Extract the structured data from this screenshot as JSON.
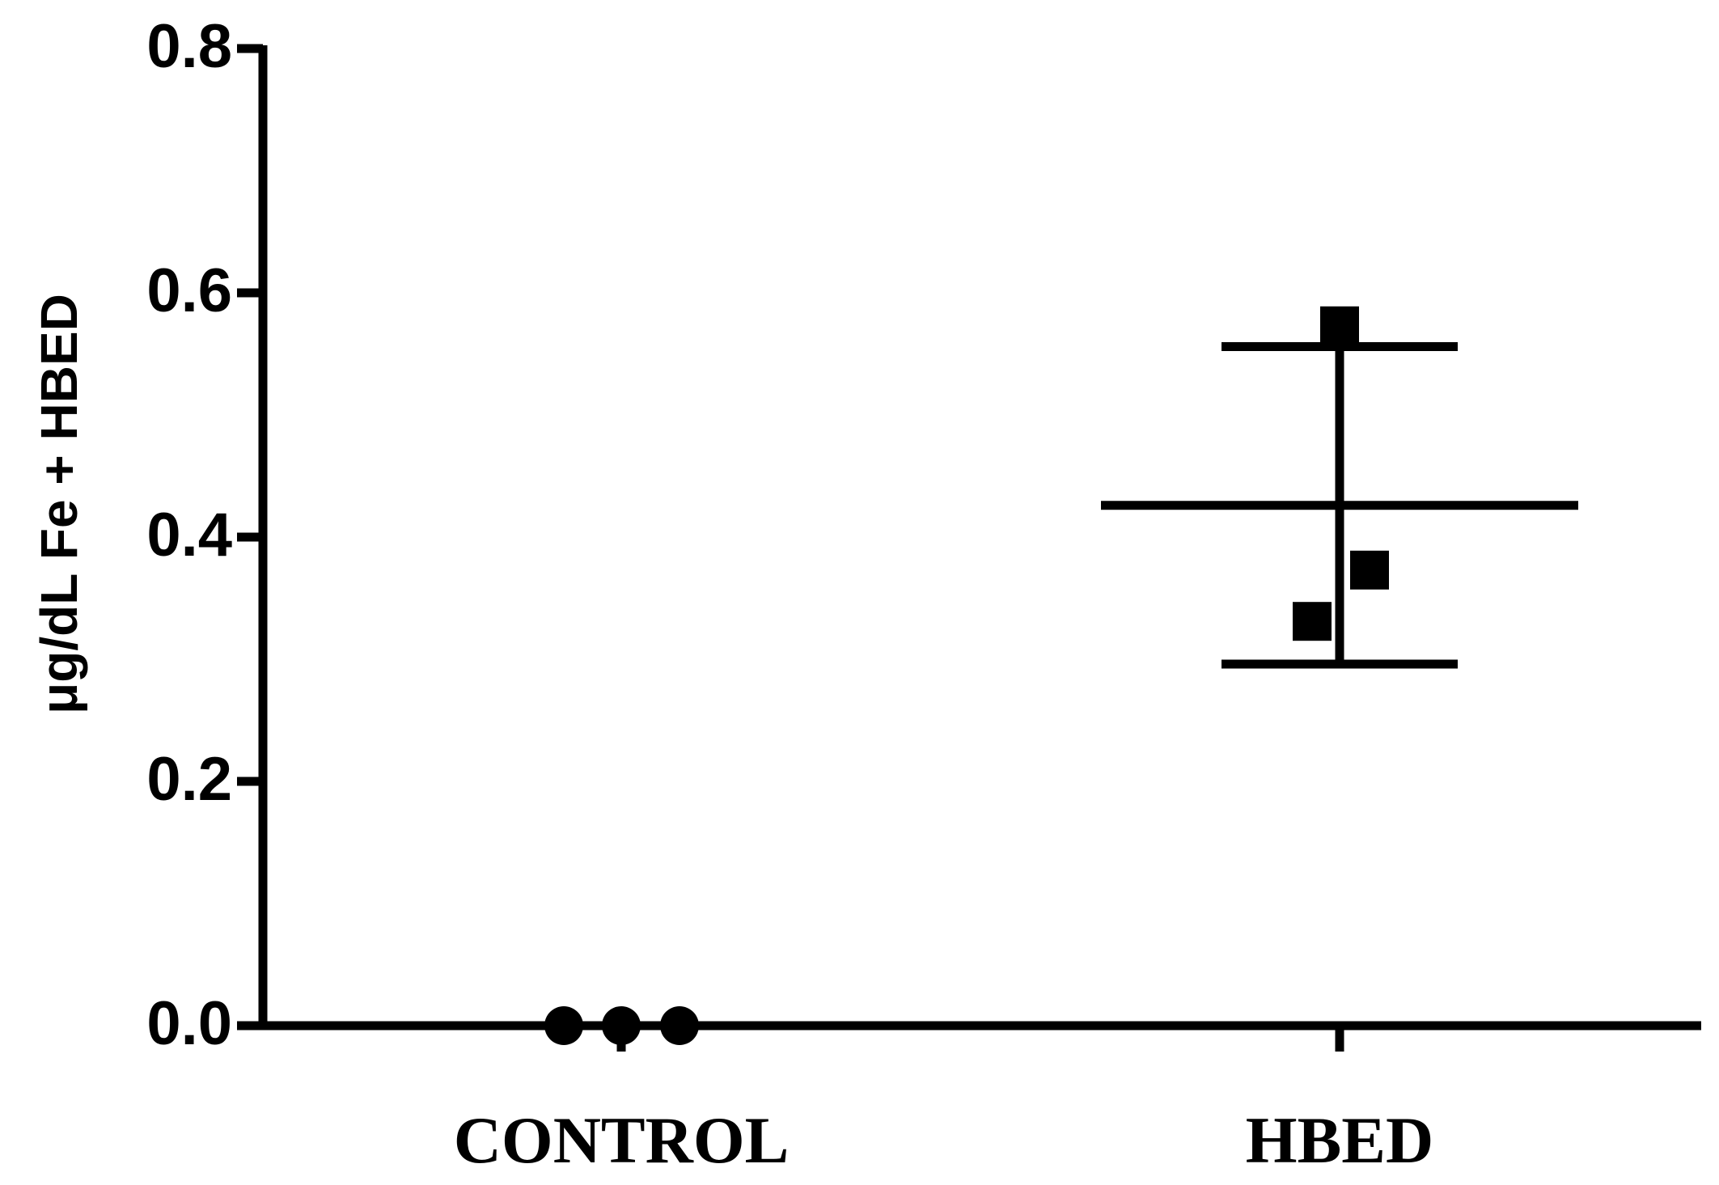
{
  "chart_data": {
    "type": "dot",
    "y_label": "μg/dL Fe + HBED",
    "categories": [
      "CONTROL",
      "HBED"
    ],
    "markers": [
      "circle",
      "square"
    ],
    "color": "#000000",
    "values": [
      [
        0,
        0,
        0
      ],
      [
        0.573,
        0.373,
        0.331
      ]
    ],
    "means": [
      0,
      0.426
    ],
    "errors": [
      0,
      0.13
    ],
    "ylim": [
      0,
      0.8
    ],
    "yticks": [
      {
        "value": 0,
        "label": "0.0"
      },
      {
        "value": 0.2,
        "label": "0.2"
      },
      {
        "value": 0.4,
        "label": "0.4"
      },
      {
        "value": 0.6,
        "label": "0.6"
      },
      {
        "value": 0.8,
        "label": "0.8"
      }
    ]
  }
}
